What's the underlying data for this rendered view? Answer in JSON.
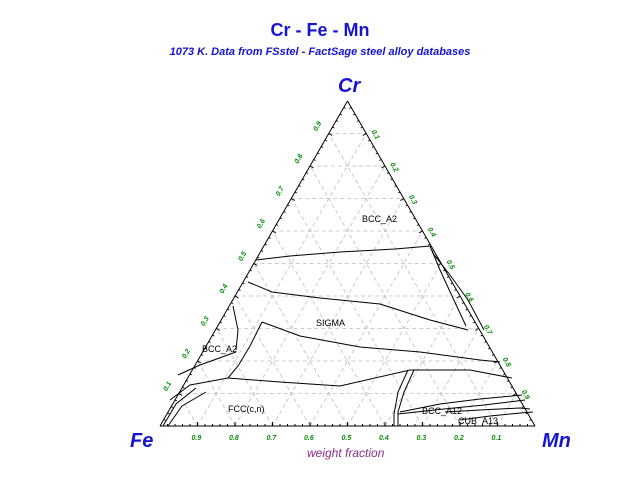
{
  "title": "Cr - Fe - Mn",
  "subtitle": "1073 K.  Data from FSstel - FactSage steel alloy databases",
  "apex_labels": {
    "top": "Cr",
    "left": "Fe",
    "right": "Mn"
  },
  "axis_caption": "weight fraction",
  "tick_values": [
    "0.1",
    "0.2",
    "0.3",
    "0.4",
    "0.5",
    "0.6",
    "0.7",
    "0.8",
    "0.9"
  ],
  "bottom_tick_labels": [
    "0.9",
    "0.8",
    "0.7",
    "0.6",
    "0.5",
    "0.4",
    "0.3",
    "0.2",
    "0.1"
  ],
  "left_tick_labels": [
    "0.1",
    "0.2",
    "0.3",
    "0.4",
    "0.5",
    "0.6",
    "0.7",
    "0.8",
    "0.9"
  ],
  "right_tick_labels": [
    "0.1",
    "0.2",
    "0.3",
    "0.4",
    "0.5",
    "0.6",
    "0.7",
    "0.8",
    "0.9"
  ],
  "phase_labels": {
    "bcc_top": "BCC_A2",
    "sigma": "SIGMA",
    "bcc_left": "BCC_A2",
    "fcc": "FCC(c,n)",
    "bcc_right": "BCC_A12",
    "cub": "CUB_A13"
  },
  "colors": {
    "title": "#1414d2",
    "tick_labels": "#0a8a0a",
    "caption": "#8b2f8b",
    "grid": "#bdbdbd",
    "boundaries": "#000000"
  }
}
